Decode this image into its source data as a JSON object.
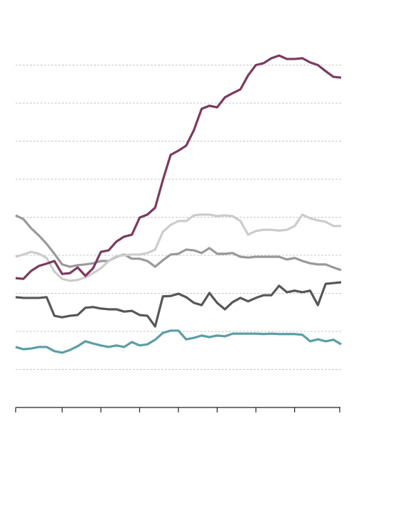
{
  "chart_data": {
    "type": "line",
    "x": [
      0,
      1,
      2,
      3,
      4,
      5,
      6,
      7,
      8,
      9,
      10,
      11,
      12,
      13,
      14,
      15,
      16,
      17,
      18,
      19,
      20,
      21,
      22,
      23,
      24,
      25,
      26,
      27,
      28,
      29,
      30,
      31,
      32,
      33,
      34,
      35,
      36,
      37,
      38,
      39,
      40,
      41,
      42
    ],
    "xlim": [
      0,
      42
    ],
    "xticks": [
      0,
      6,
      11,
      16,
      21,
      26,
      31,
      36,
      42
    ],
    "ylim": [
      0,
      10
    ],
    "yticks": [
      1,
      2,
      3,
      4,
      5,
      6,
      7,
      8,
      9
    ],
    "grid": true,
    "series": [
      {
        "color": "#5b9ea6",
        "values": [
          1.59,
          1.53,
          1.55,
          1.59,
          1.59,
          1.48,
          1.44,
          1.51,
          1.61,
          1.74,
          1.68,
          1.63,
          1.59,
          1.63,
          1.59,
          1.72,
          1.63,
          1.66,
          1.78,
          1.96,
          2.02,
          2.02,
          1.79,
          1.83,
          1.89,
          1.85,
          1.89,
          1.87,
          1.94,
          1.94,
          1.94,
          1.94,
          1.93,
          1.94,
          1.93,
          1.93,
          1.93,
          1.91,
          1.74,
          1.79,
          1.74,
          1.78,
          1.66
        ]
      },
      {
        "color": "#575757",
        "values": [
          2.9,
          2.88,
          2.88,
          2.88,
          2.9,
          2.41,
          2.37,
          2.41,
          2.43,
          2.62,
          2.64,
          2.6,
          2.58,
          2.58,
          2.52,
          2.54,
          2.43,
          2.41,
          2.13,
          2.92,
          2.93,
          2.99,
          2.9,
          2.75,
          2.69,
          3.01,
          2.75,
          2.58,
          2.77,
          2.88,
          2.79,
          2.88,
          2.95,
          2.95,
          3.2,
          3.03,
          3.07,
          3.03,
          3.07,
          2.69,
          3.25,
          3.27,
          3.29
        ]
      },
      {
        "color": "#999999",
        "values": [
          5.05,
          4.95,
          4.71,
          4.52,
          4.3,
          4.04,
          3.76,
          3.7,
          3.74,
          3.76,
          3.79,
          3.85,
          3.85,
          3.96,
          4.02,
          3.91,
          3.91,
          3.85,
          3.7,
          3.87,
          4.02,
          4.04,
          4.15,
          4.13,
          4.06,
          4.19,
          4.04,
          4.04,
          4.06,
          3.96,
          3.94,
          3.96,
          3.96,
          3.96,
          3.96,
          3.89,
          3.93,
          3.85,
          3.79,
          3.76,
          3.76,
          3.68,
          3.61
        ]
      },
      {
        "color": "#cccccc",
        "values": [
          3.96,
          4.02,
          4.09,
          4.04,
          3.93,
          3.57,
          3.38,
          3.33,
          3.35,
          3.42,
          3.53,
          3.66,
          3.85,
          3.98,
          4.0,
          4.02,
          4.02,
          4.06,
          4.15,
          4.62,
          4.8,
          4.9,
          4.9,
          5.05,
          5.07,
          5.07,
          5.03,
          5.05,
          5.03,
          4.9,
          4.54,
          4.64,
          4.67,
          4.67,
          4.65,
          4.67,
          4.77,
          5.07,
          4.97,
          4.92,
          4.88,
          4.77,
          4.77
        ]
      },
      {
        "color": "#7b3a5e",
        "values": [
          3.4,
          3.38,
          3.59,
          3.72,
          3.78,
          3.85,
          3.51,
          3.53,
          3.68,
          3.46,
          3.66,
          4.09,
          4.13,
          4.36,
          4.49,
          4.54,
          4.99,
          5.07,
          5.25,
          5.98,
          6.64,
          6.75,
          6.88,
          7.29,
          7.85,
          7.93,
          7.89,
          8.15,
          8.26,
          8.36,
          8.73,
          9.0,
          9.05,
          9.18,
          9.25,
          9.16,
          9.16,
          9.18,
          9.07,
          9.0,
          8.84,
          8.69,
          8.67
        ]
      }
    ]
  }
}
